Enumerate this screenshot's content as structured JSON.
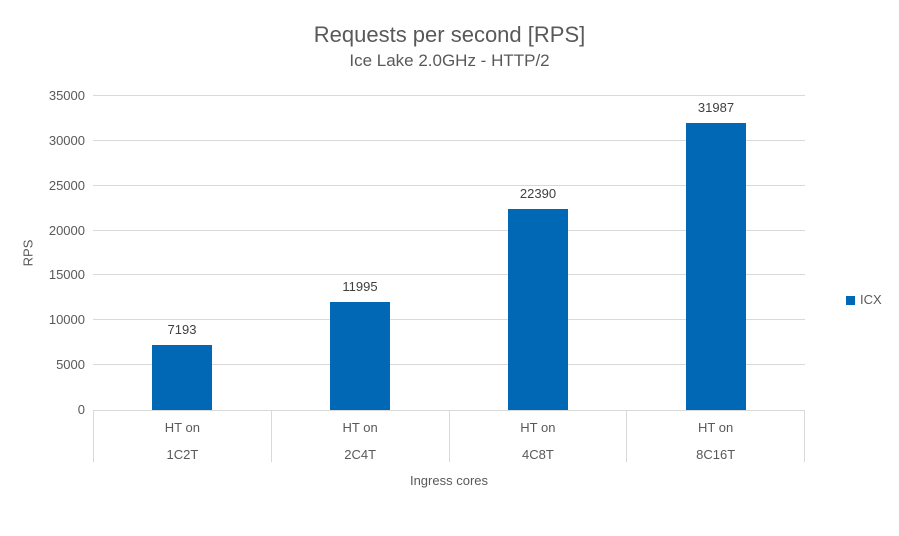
{
  "chart_data": {
    "type": "bar",
    "title": "Requests per second [RPS]",
    "subtitle": "Ice Lake 2.0GHz - HTTP/2",
    "xlabel": "Ingress cores",
    "ylabel": "RPS",
    "categories": [
      {
        "line1": "HT on",
        "line2": "1C2T"
      },
      {
        "line1": "HT on",
        "line2": "2C4T"
      },
      {
        "line1": "HT on",
        "line2": "4C8T"
      },
      {
        "line1": "HT on",
        "line2": "8C16T"
      }
    ],
    "series": [
      {
        "name": "ICX",
        "color": "#0068B5",
        "values": [
          7193,
          11995,
          22390,
          31987
        ]
      }
    ],
    "ylim": [
      0,
      35000
    ],
    "yticks": [
      0,
      5000,
      10000,
      15000,
      20000,
      25000,
      30000,
      35000
    ],
    "grid": true,
    "legend_position": "right",
    "data_labels": true
  },
  "colors": {
    "bar": "#0068B5",
    "title_text": "#595959",
    "axis_text": "#595959",
    "data_label_text": "#404040",
    "gridline": "#D9D9D9",
    "axis_line": "#D9D9D9",
    "background": "#FFFFFF"
  }
}
